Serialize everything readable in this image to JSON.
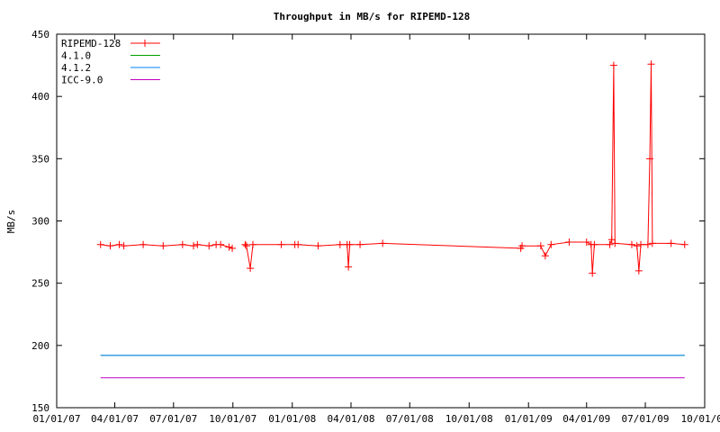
{
  "chart_data": {
    "type": "line",
    "title": "Throughput in MB/s for RIPEMD-128",
    "xlabel": "",
    "ylabel": "MB/s",
    "x_axis": "date",
    "xlim": [
      "2007-01-01",
      "2009-10-01"
    ],
    "ylim": [
      150,
      450
    ],
    "yticks": [
      150,
      200,
      250,
      300,
      350,
      400,
      450
    ],
    "xticks": [
      "01/01/07",
      "04/01/07",
      "07/01/07",
      "10/01/07",
      "01/01/08",
      "04/01/08",
      "07/01/08",
      "10/01/08",
      "01/01/09",
      "04/01/09",
      "07/01/09",
      "10/01/09"
    ],
    "xtick_dates": [
      "2007-01-01",
      "2007-04-01",
      "2007-07-01",
      "2007-10-01",
      "2008-01-01",
      "2008-04-01",
      "2008-07-01",
      "2008-10-01",
      "2009-01-01",
      "2009-04-01",
      "2009-07-01",
      "2009-10-01"
    ],
    "grid": false,
    "legend_position": "top-left",
    "series": [
      {
        "name": "RIPEMD-128",
        "color": "#ff0000",
        "marker": "plus",
        "segments": [
          [
            [
              "2007-03-10",
              281
            ],
            [
              "2007-03-25",
              280
            ],
            [
              "2007-04-08",
              281
            ]
          ],
          [
            [
              "2007-04-15",
              280
            ],
            [
              "2007-05-15",
              281
            ],
            [
              "2007-06-15",
              280
            ],
            [
              "2007-07-15",
              281
            ],
            [
              "2007-08-01",
              280
            ]
          ],
          [
            [
              "2007-08-07",
              281
            ],
            [
              "2007-08-25",
              280
            ],
            [
              "2007-09-05",
              281
            ]
          ],
          [
            [
              "2007-09-12",
              281
            ],
            [
              "2007-09-25",
              279
            ],
            [
              "2007-09-30",
              278
            ]
          ],
          [
            [
              "2007-10-20",
              281
            ],
            [
              "2007-10-22",
              280
            ],
            [
              "2007-10-28",
              262
            ],
            [
              "2007-11-01",
              281
            ],
            [
              "2007-12-15",
              281
            ],
            [
              "2008-01-05",
              281
            ]
          ],
          [
            [
              "2008-01-10",
              281
            ],
            [
              "2008-02-10",
              280
            ],
            [
              "2008-03-15",
              281
            ],
            [
              "2008-03-26",
              281
            ],
            [
              "2008-03-28",
              263
            ],
            [
              "2008-03-30",
              281
            ],
            [
              "2008-04-15",
              281
            ],
            [
              "2008-05-20",
              282
            ],
            [
              "2008-12-20",
              278
            ]
          ],
          [
            [
              "2008-12-22",
              280
            ],
            [
              "2009-01-20",
              280
            ],
            [
              "2009-01-27",
              272
            ],
            [
              "2009-02-05",
              281
            ],
            [
              "2009-03-05",
              283
            ],
            [
              "2009-04-01",
              283
            ],
            [
              "2009-04-08",
              281
            ],
            [
              "2009-04-10",
              258
            ],
            [
              "2009-04-13",
              281
            ],
            [
              "2009-05-07",
              281
            ],
            [
              "2009-05-10",
              285
            ],
            [
              "2009-05-13",
              425
            ],
            [
              "2009-05-15",
              282
            ],
            [
              "2009-06-10",
              281
            ],
            [
              "2009-06-18",
              280
            ],
            [
              "2009-06-21",
              260
            ],
            [
              "2009-06-24",
              281
            ],
            [
              "2009-07-05",
              281
            ],
            [
              "2009-07-08",
              350
            ],
            [
              "2009-07-10",
              426
            ],
            [
              "2009-07-12",
              282
            ],
            [
              "2009-08-10",
              282
            ],
            [
              "2009-08-31",
              281
            ]
          ]
        ]
      },
      {
        "name": "4.1.0",
        "color": "#00a000",
        "values": [
          [
            "2007-03-10",
            192
          ],
          [
            "2009-08-31",
            192
          ]
        ]
      },
      {
        "name": "4.1.2",
        "color": "#0080ff",
        "values": [
          [
            "2007-03-10",
            192
          ],
          [
            "2009-08-31",
            192
          ]
        ]
      },
      {
        "name": "ICC-9.0",
        "color": "#c000c0",
        "values": [
          [
            "2007-03-10",
            174
          ],
          [
            "2009-08-31",
            174
          ]
        ]
      }
    ]
  }
}
